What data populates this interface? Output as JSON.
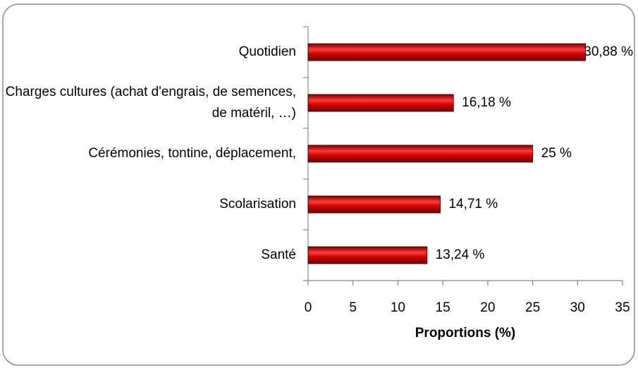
{
  "chart_data": {
    "type": "bar",
    "orientation": "horizontal",
    "categories": [
      "Quotidien",
      "Charges cultures (achat d'engrais, de semences, de matéril, …)",
      "Cérémonies, tontine, déplacement,",
      "Scolarisation",
      "Santé"
    ],
    "values": [
      30.88,
      16.18,
      25,
      14.71,
      13.24
    ],
    "value_labels": [
      "30,88 %",
      "16,18 %",
      "25 %",
      "14,71 %",
      "13,24 %"
    ],
    "color": "#cc0000",
    "xlabel": "Proportions (%)",
    "xlim": [
      0,
      35
    ],
    "xticks": [
      0,
      5,
      10,
      15,
      20,
      25,
      30,
      35
    ],
    "grid": false
  }
}
